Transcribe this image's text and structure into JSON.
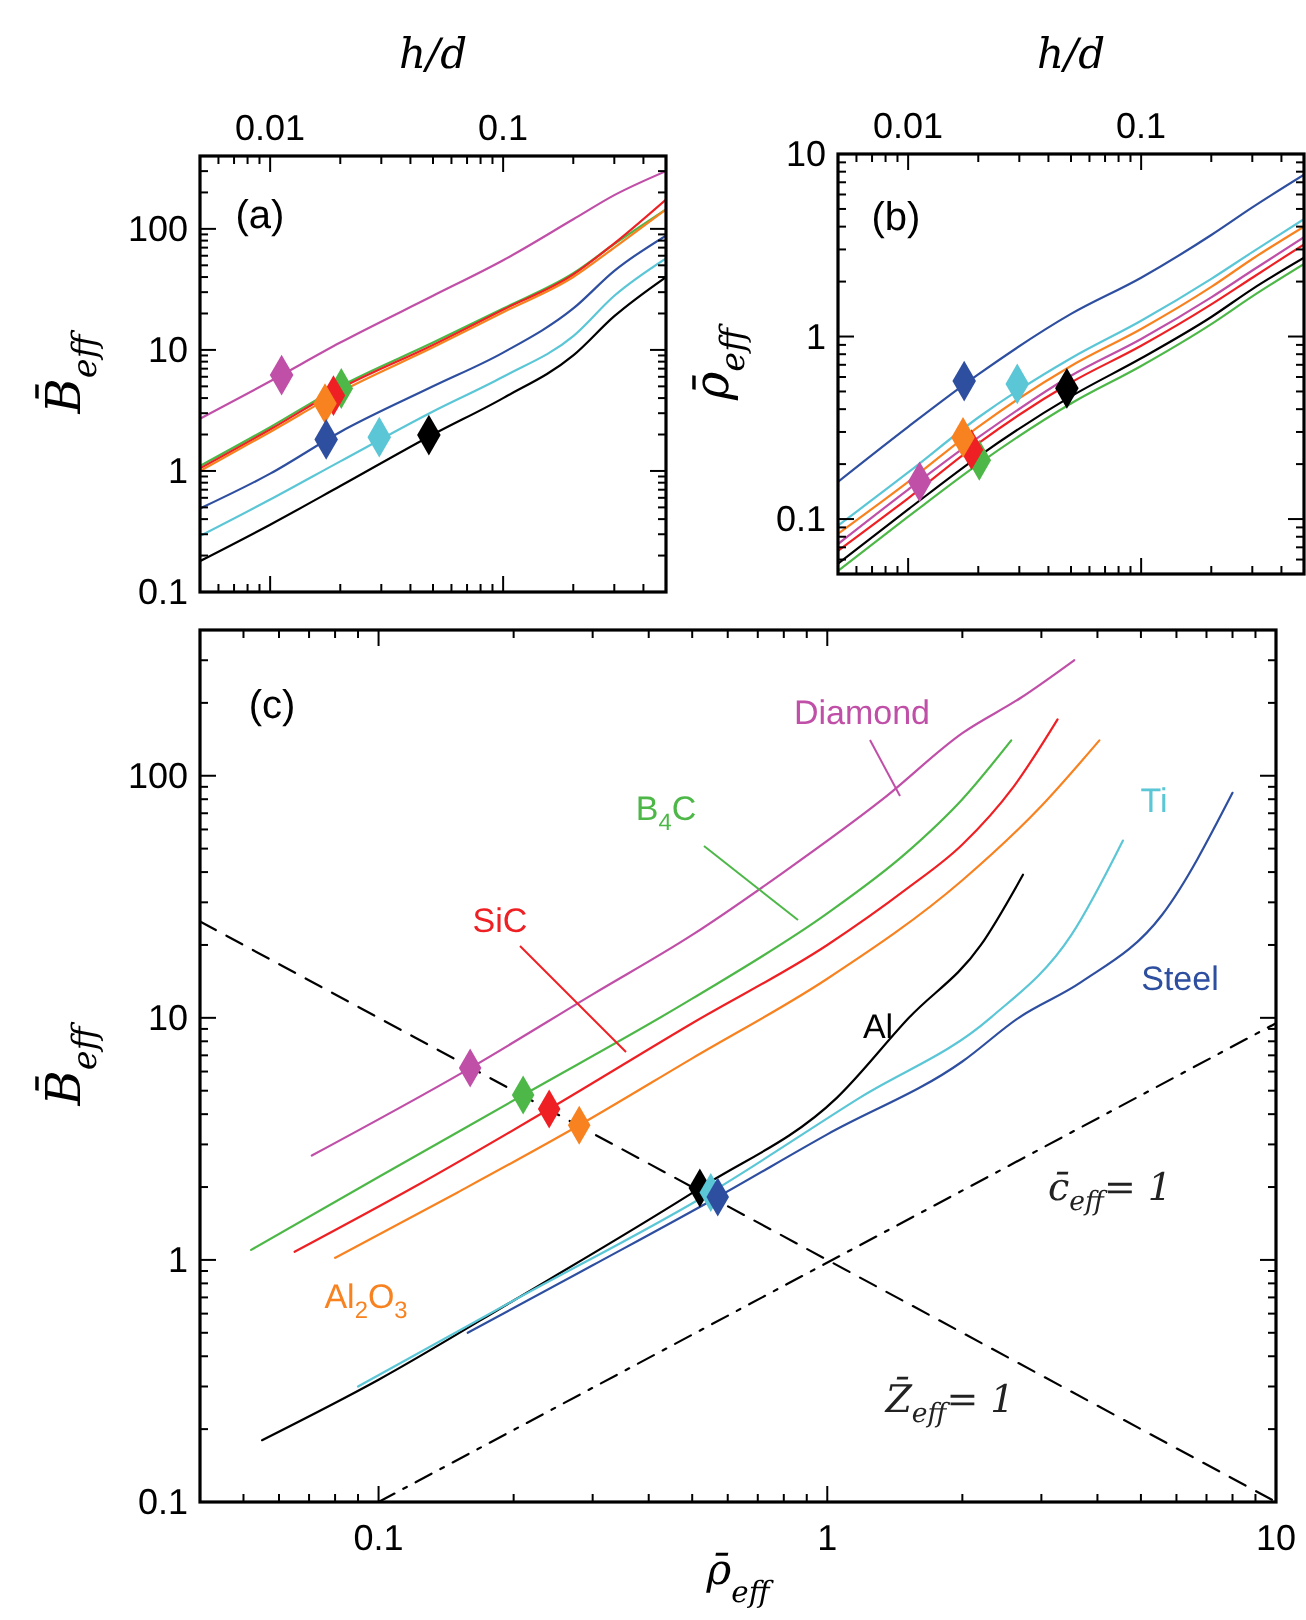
{
  "chart_data": [
    {
      "type": "line",
      "title": "(a)",
      "xlabel": "h/d",
      "ylabel": "B̄$_{eff}$",
      "log": "xy",
      "x": [
        0.005,
        0.01,
        0.02,
        0.05,
        0.1,
        0.2,
        0.3,
        0.5
      ],
      "xlim": [
        0.005,
        0.5
      ],
      "ylim": [
        0.1,
        400
      ],
      "xticks": [
        {
          "value": 0.005,
          "label": null
        },
        {
          "value": 0.006,
          "label": null
        },
        {
          "value": 0.007,
          "label": null
        },
        {
          "value": 0.008,
          "label": null
        },
        {
          "value": 0.009,
          "label": null
        },
        0.01,
        {
          "value": 0.02,
          "label": null
        },
        {
          "value": 0.03,
          "label": null
        },
        {
          "value": 0.04,
          "label": null
        },
        {
          "value": 0.05,
          "label": null
        },
        {
          "value": 0.06,
          "label": null
        },
        {
          "value": 0.07,
          "label": null
        },
        {
          "value": 0.08,
          "label": null
        },
        {
          "value": 0.09,
          "label": null
        },
        0.1,
        {
          "value": 0.2,
          "label": null
        },
        {
          "value": 0.3,
          "label": null
        },
        {
          "value": 0.4,
          "label": null
        },
        {
          "value": 0.5,
          "label": null
        }
      ],
      "yticks": [
        0.1,
        {
          "value": 0.2,
          "label": null
        },
        {
          "value": 0.3,
          "label": null
        },
        {
          "value": 0.4,
          "label": null
        },
        {
          "value": 0.5,
          "label": null
        },
        {
          "value": 0.6,
          "label": null
        },
        {
          "value": 0.7,
          "label": null
        },
        {
          "value": 0.8,
          "label": null
        },
        {
          "value": 0.9,
          "label": null
        },
        1,
        {
          "value": 2,
          "label": null
        },
        {
          "value": 3,
          "label": null
        },
        {
          "value": 4,
          "label": null
        },
        {
          "value": 5,
          "label": null
        },
        {
          "value": 6,
          "label": null
        },
        {
          "value": 7,
          "label": null
        },
        {
          "value": 8,
          "label": null
        },
        {
          "value": 9,
          "label": null
        },
        10,
        {
          "value": 20,
          "label": null
        },
        {
          "value": 30,
          "label": null
        },
        {
          "value": 40,
          "label": null
        },
        {
          "value": 50,
          "label": null
        },
        {
          "value": 60,
          "label": null
        },
        {
          "value": 70,
          "label": null
        },
        {
          "value": 80,
          "label": null
        },
        {
          "value": 90,
          "label": null
        },
        100,
        {
          "value": 200,
          "label": null
        },
        {
          "value": 300,
          "label": null
        }
      ],
      "series": [
        {
          "type": "line",
          "color": "#c04fa8",
          "values": [
            2.7,
            5.5,
            11.5,
            28,
            55,
            120,
            190,
            300
          ]
        },
        {
          "type": "line",
          "color": "#4db848",
          "values": [
            1.1,
            2.3,
            5.0,
            11.5,
            22,
            43,
            75,
            145
          ]
        },
        {
          "type": "line",
          "color": "#ee2024",
          "values": [
            1.05,
            2.2,
            4.8,
            11,
            21.5,
            42,
            76,
            175
          ]
        },
        {
          "type": "line",
          "color": "#f7821f",
          "values": [
            1.0,
            2.1,
            4.5,
            10.5,
            20.5,
            40,
            70,
            145
          ]
        },
        {
          "type": "line",
          "color": "#000000",
          "values": [
            0.18,
            0.36,
            0.75,
            2.0,
            4,
            9,
            19,
            40
          ]
        },
        {
          "type": "line",
          "color": "#5bc6d6",
          "values": [
            0.29,
            0.58,
            1.2,
            3.1,
            6,
            13,
            28,
            57
          ]
        },
        {
          "type": "line",
          "color": "#2e4fa0",
          "values": [
            0.49,
            0.95,
            2.1,
            5,
            9.5,
            22,
            45,
            88
          ]
        },
        {
          "type": "scatter",
          "marker": "diamond",
          "color": "#c04fa8",
          "x": [
            0.0112
          ],
          "values": [
            6.2
          ]
        },
        {
          "type": "scatter",
          "marker": "diamond",
          "color": "#4db848",
          "x": [
            0.0202
          ],
          "values": [
            4.8
          ]
        },
        {
          "type": "scatter",
          "marker": "diamond",
          "color": "#ee2024",
          "x": [
            0.0187
          ],
          "values": [
            4.2
          ]
        },
        {
          "type": "scatter",
          "marker": "diamond",
          "color": "#f7821f",
          "x": [
            0.0172
          ],
          "values": [
            3.6
          ]
        },
        {
          "type": "scatter",
          "marker": "diamond",
          "color": "#000000",
          "x": [
            0.048
          ],
          "values": [
            1.98
          ]
        },
        {
          "type": "scatter",
          "marker": "diamond",
          "color": "#5bc6d6",
          "x": [
            0.0294
          ],
          "values": [
            1.9
          ]
        },
        {
          "type": "scatter",
          "marker": "diamond",
          "color": "#2e4fa0",
          "x": [
            0.0174
          ],
          "values": [
            1.82
          ]
        }
      ]
    },
    {
      "type": "line",
      "title": "(b)",
      "xlabel": "h/d",
      "ylabel": "ρ̄$_{eff}$",
      "log": "xy",
      "x": [
        0.005,
        0.01,
        0.02,
        0.05,
        0.1,
        0.2,
        0.3,
        0.5
      ],
      "xlim": [
        0.005,
        0.5
      ],
      "ylim": [
        0.05,
        10
      ],
      "xticks": [
        {
          "value": 0.005,
          "label": null
        },
        {
          "value": 0.006,
          "label": null
        },
        {
          "value": 0.007,
          "label": null
        },
        {
          "value": 0.008,
          "label": null
        },
        {
          "value": 0.009,
          "label": null
        },
        0.01,
        {
          "value": 0.02,
          "label": null
        },
        {
          "value": 0.03,
          "label": null
        },
        {
          "value": 0.04,
          "label": null
        },
        {
          "value": 0.05,
          "label": null
        },
        {
          "value": 0.06,
          "label": null
        },
        {
          "value": 0.07,
          "label": null
        },
        {
          "value": 0.08,
          "label": null
        },
        {
          "value": 0.09,
          "label": null
        },
        0.1,
        {
          "value": 0.2,
          "label": null
        },
        {
          "value": 0.3,
          "label": null
        },
        {
          "value": 0.4,
          "label": null
        },
        {
          "value": 0.5,
          "label": null
        }
      ],
      "yticks": [
        {
          "value": 0.05,
          "label": null
        },
        {
          "value": 0.06,
          "label": null
        },
        {
          "value": 0.07,
          "label": null
        },
        {
          "value": 0.08,
          "label": null
        },
        {
          "value": 0.09,
          "label": null
        },
        0.1,
        {
          "value": 0.2,
          "label": null
        },
        {
          "value": 0.3,
          "label": null
        },
        {
          "value": 0.4,
          "label": null
        },
        {
          "value": 0.5,
          "label": null
        },
        {
          "value": 0.6,
          "label": null
        },
        {
          "value": 0.7,
          "label": null
        },
        {
          "value": 0.8,
          "label": null
        },
        {
          "value": 0.9,
          "label": null
        },
        1,
        {
          "value": 2,
          "label": null
        },
        {
          "value": 3,
          "label": null
        },
        {
          "value": 4,
          "label": null
        },
        {
          "value": 5,
          "label": null
        },
        {
          "value": 6,
          "label": null
        },
        {
          "value": 7,
          "label": null
        },
        {
          "value": 8,
          "label": null
        },
        {
          "value": 9,
          "label": null
        },
        10
      ],
      "series": [
        {
          "type": "line",
          "color": "#2e4fa0",
          "values": [
            0.16,
            0.32,
            0.62,
            1.33,
            2.1,
            3.6,
            5.1,
            7.7
          ]
        },
        {
          "type": "line",
          "color": "#5bc6d6",
          "values": [
            0.092,
            0.18,
            0.36,
            0.76,
            1.22,
            2.07,
            2.9,
            4.4
          ]
        },
        {
          "type": "line",
          "color": "#f7821f",
          "values": [
            0.083,
            0.16,
            0.32,
            0.69,
            1.1,
            1.87,
            2.66,
            4.0
          ]
        },
        {
          "type": "line",
          "color": "#c04fa8",
          "values": [
            0.073,
            0.145,
            0.28,
            0.61,
            0.97,
            1.64,
            2.3,
            3.5
          ]
        },
        {
          "type": "line",
          "color": "#ee2024",
          "values": [
            0.067,
            0.13,
            0.26,
            0.56,
            0.89,
            1.5,
            2.1,
            3.2
          ]
        },
        {
          "type": "line",
          "color": "#000000",
          "values": [
            0.057,
            0.113,
            0.22,
            0.47,
            0.76,
            1.28,
            1.82,
            2.7
          ]
        },
        {
          "type": "line",
          "color": "#4db848",
          "values": [
            0.052,
            0.103,
            0.2,
            0.43,
            0.69,
            1.17,
            1.66,
            2.5
          ]
        },
        {
          "type": "scatter",
          "marker": "diamond",
          "color": "#c04fa8",
          "x": [
            0.0112
          ],
          "values": [
            0.16
          ]
        },
        {
          "type": "scatter",
          "marker": "diamond",
          "color": "#4db848",
          "x": [
            0.0202
          ],
          "values": [
            0.21
          ]
        },
        {
          "type": "scatter",
          "marker": "diamond",
          "color": "#ee2024",
          "x": [
            0.0187
          ],
          "values": [
            0.24
          ]
        },
        {
          "type": "scatter",
          "marker": "diamond",
          "color": "#f7821f",
          "x": [
            0.0172
          ],
          "values": [
            0.28
          ]
        },
        {
          "type": "scatter",
          "marker": "diamond",
          "color": "#000000",
          "x": [
            0.048
          ],
          "values": [
            0.52
          ]
        },
        {
          "type": "scatter",
          "marker": "diamond",
          "color": "#5bc6d6",
          "x": [
            0.0294
          ],
          "values": [
            0.55
          ]
        },
        {
          "type": "scatter",
          "marker": "diamond",
          "color": "#2e4fa0",
          "x": [
            0.0174
          ],
          "values": [
            0.57
          ]
        }
      ]
    },
    {
      "type": "line",
      "title": "(c)",
      "xlabel": "ρ̄$_{eff}$",
      "ylabel": "B̄$_{eff}$",
      "log": "xy",
      "xlim": [
        0.04,
        10
      ],
      "ylim": [
        0.1,
        400
      ],
      "xticks": [
        {
          "value": 0.04,
          "label": null
        },
        {
          "value": 0.05,
          "label": null
        },
        {
          "value": 0.06,
          "label": null
        },
        {
          "value": 0.07,
          "label": null
        },
        {
          "value": 0.08,
          "label": null
        },
        {
          "value": 0.09,
          "label": null
        },
        0.1,
        {
          "value": 0.2,
          "label": null
        },
        {
          "value": 0.3,
          "label": null
        },
        {
          "value": 0.4,
          "label": null
        },
        {
          "value": 0.5,
          "label": null
        },
        {
          "value": 0.6,
          "label": null
        },
        {
          "value": 0.7,
          "label": null
        },
        {
          "value": 0.8,
          "label": null
        },
        {
          "value": 0.9,
          "label": null
        },
        1,
        {
          "value": 2,
          "label": null
        },
        {
          "value": 3,
          "label": null
        },
        {
          "value": 4,
          "label": null
        },
        {
          "value": 5,
          "label": null
        },
        {
          "value": 6,
          "label": null
        },
        {
          "value": 7,
          "label": null
        },
        {
          "value": 8,
          "label": null
        },
        {
          "value": 9,
          "label": null
        },
        10
      ],
      "yticks": [
        0.1,
        {
          "value": 0.2,
          "label": null
        },
        {
          "value": 0.3,
          "label": null
        },
        {
          "value": 0.4,
          "label": null
        },
        {
          "value": 0.5,
          "label": null
        },
        {
          "value": 0.6,
          "label": null
        },
        {
          "value": 0.7,
          "label": null
        },
        {
          "value": 0.8,
          "label": null
        },
        {
          "value": 0.9,
          "label": null
        },
        1,
        {
          "value": 2,
          "label": null
        },
        {
          "value": 3,
          "label": null
        },
        {
          "value": 4,
          "label": null
        },
        {
          "value": 5,
          "label": null
        },
        {
          "value": 6,
          "label": null
        },
        {
          "value": 7,
          "label": null
        },
        {
          "value": 8,
          "label": null
        },
        {
          "value": 9,
          "label": null
        },
        10,
        {
          "value": 20,
          "label": null
        },
        {
          "value": 30,
          "label": null
        },
        {
          "value": 40,
          "label": null
        },
        {
          "value": 50,
          "label": null
        },
        {
          "value": 60,
          "label": null
        },
        {
          "value": 70,
          "label": null
        },
        {
          "value": 80,
          "label": null
        },
        {
          "value": 90,
          "label": null
        },
        100,
        {
          "value": 200,
          "label": null
        },
        {
          "value": 300,
          "label": null
        }
      ],
      "annotations": [
        "Z̄$_{eff}$= 1",
        "c̄$_{eff}$= 1"
      ],
      "series": [
        {
          "type": "line",
          "color": "#000000",
          "line_style": "dashed",
          "x": [
            0.04,
            10
          ],
          "values": [
            25,
            0.1
          ]
        },
        {
          "type": "line",
          "color": "#000000",
          "line_style": "dashdot",
          "x": [
            0.1,
            10
          ],
          "values": [
            0.1,
            9.5
          ]
        },
        {
          "type": "line",
          "name": "Diamond",
          "color": "#c04fa8",
          "x": [
            0.071,
            0.16,
            0.3,
            0.5,
            0.8,
            1.34,
            2,
            2.7,
            3.55
          ],
          "values": [
            2.7,
            6.2,
            12.5,
            22,
            40,
            81,
            150,
            210,
            300
          ]
        },
        {
          "type": "line",
          "name": "B$_{4}$C",
          "color": "#4db848",
          "x": [
            0.052,
            0.1,
            0.21,
            0.5,
            1,
            1.5,
            2,
            2.57
          ],
          "values": [
            1.1,
            2.2,
            4.8,
            12,
            27,
            48,
            80,
            140
          ]
        },
        {
          "type": "line",
          "name": "SiC",
          "color": "#ee2024",
          "x": [
            0.065,
            0.12,
            0.24,
            0.5,
            1,
            1.5,
            2,
            2.6,
            3.26
          ],
          "values": [
            1.08,
            2,
            4.2,
            9.5,
            20,
            34,
            52,
            90,
            171
          ]
        },
        {
          "type": "line",
          "name": "Al$_{2}$O$_{3}$",
          "color": "#f7821f",
          "x": [
            0.08,
            0.15,
            0.28,
            0.5,
            1,
            2,
            3,
            4.04
          ],
          "values": [
            1.02,
            1.9,
            3.6,
            6.8,
            14.5,
            37,
            75,
            140
          ]
        },
        {
          "type": "line",
          "name": "Al",
          "color": "#000000",
          "x": [
            0.055,
            0.1,
            0.2,
            0.52,
            1.05,
            1.52,
            2.2,
            2.73
          ],
          "values": [
            0.18,
            0.32,
            0.68,
            1.98,
            4.67,
            10,
            20,
            39
          ]
        },
        {
          "type": "line",
          "name": "Ti",
          "color": "#5bc6d6",
          "x": [
            0.09,
            0.2,
            0.55,
            1.18,
            2.31,
            3.5,
            4.56
          ],
          "values": [
            0.3,
            0.68,
            1.9,
            4.67,
            10,
            22,
            54
          ]
        },
        {
          "type": "line",
          "name": "Steel",
          "color": "#2e4fa0",
          "x": [
            0.158,
            0.3,
            0.57,
            1,
            2,
            2.67,
            3.67,
            5.57,
            8
          ],
          "values": [
            0.5,
            0.95,
            1.82,
            3.3,
            6.6,
            10,
            14,
            26.6,
            85
          ]
        },
        {
          "type": "scatter",
          "marker": "diamond",
          "color": "#c04fa8",
          "x": [
            0.16
          ],
          "values": [
            6.2
          ]
        },
        {
          "type": "scatter",
          "marker": "diamond",
          "color": "#4db848",
          "x": [
            0.21
          ],
          "values": [
            4.8
          ]
        },
        {
          "type": "scatter",
          "marker": "diamond",
          "color": "#ee2024",
          "x": [
            0.24
          ],
          "values": [
            4.2
          ]
        },
        {
          "type": "scatter",
          "marker": "diamond",
          "color": "#f7821f",
          "x": [
            0.28
          ],
          "values": [
            3.6
          ]
        },
        {
          "type": "scatter",
          "marker": "diamond",
          "color": "#000000",
          "x": [
            0.52
          ],
          "values": [
            1.98
          ]
        },
        {
          "type": "scatter",
          "marker": "diamond",
          "color": "#5bc6d6",
          "x": [
            0.55
          ],
          "values": [
            1.9
          ]
        },
        {
          "type": "scatter",
          "marker": "diamond",
          "color": "#2e4fa0",
          "x": [
            0.57
          ],
          "values": [
            1.82
          ]
        }
      ]
    }
  ]
}
